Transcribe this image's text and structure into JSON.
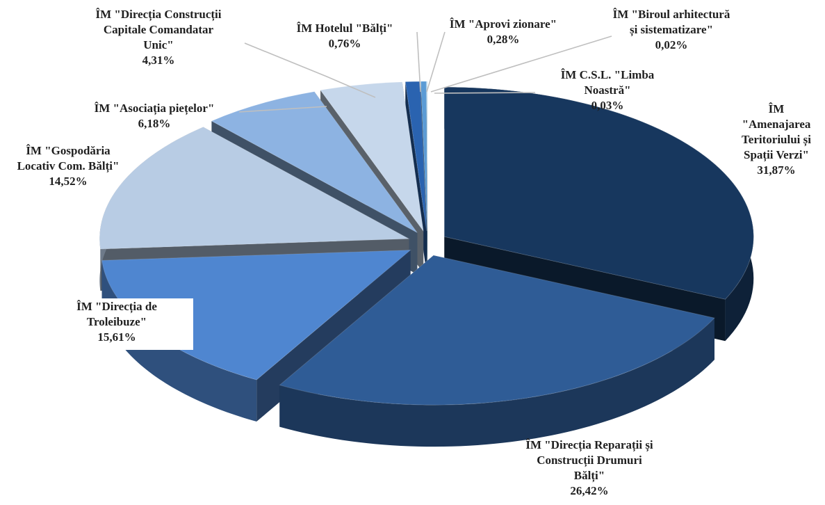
{
  "chart_data": {
    "type": "pie",
    "title": "",
    "style": "3d-exploded",
    "start": "12 o'clock, clockwise",
    "slices": [
      {
        "label_lines": [
          "ÎM",
          "\"Amenajarea",
          "Teritoriului și",
          "Spații Verzi\""
        ],
        "value_label": "31,87%",
        "value": 31.87,
        "color": "#17375e"
      },
      {
        "label_lines": [
          "ÎM \"Direcția Reparații și",
          "Construcții Drumuri",
          "Bălți\""
        ],
        "value_label": "26,42%",
        "value": 26.42,
        "color": "#2f5c96"
      },
      {
        "label_lines": [
          "ÎM \"Direcția de",
          "Troleibuze\""
        ],
        "value_label": "15,61%",
        "value": 15.61,
        "color": "#4f86d0"
      },
      {
        "label_lines": [
          "ÎM \"Gospodăria",
          "Locativ Com. Bălți\""
        ],
        "value_label": "14,52%",
        "value": 14.52,
        "color": "#b8cce4"
      },
      {
        "label_lines": [
          "ÎM \"Asociația piețelor\""
        ],
        "value_label": "6,18%",
        "value": 6.18,
        "color": "#8db3e2"
      },
      {
        "label_lines": [
          "ÎM \"Direcția Construcții",
          "Capitale Comandatar",
          "Unic\""
        ],
        "value_label": "4,31%",
        "value": 4.31,
        "color": "#c6d7eb"
      },
      {
        "label_lines": [
          "ÎM Hotelul \"Bălți\""
        ],
        "value_label": "0,76%",
        "value": 0.76,
        "color": "#2a63b0"
      },
      {
        "label_lines": [
          "ÎM \"Aprovi zionare\""
        ],
        "value_label": "0,28%",
        "value": 0.28,
        "color": "#5b9bd5"
      },
      {
        "label_lines": [
          "ÎM \"Biroul arhitectură",
          "și sistematizare\""
        ],
        "value_label": "0,02%",
        "value": 0.02,
        "color": "#9dc3e6"
      },
      {
        "label_lines": [
          "ÎM C.S.L. \"Limba",
          "Noastră\""
        ],
        "value_label": "0,03%",
        "value": 0.03,
        "color": "#a9d8ec"
      }
    ]
  }
}
